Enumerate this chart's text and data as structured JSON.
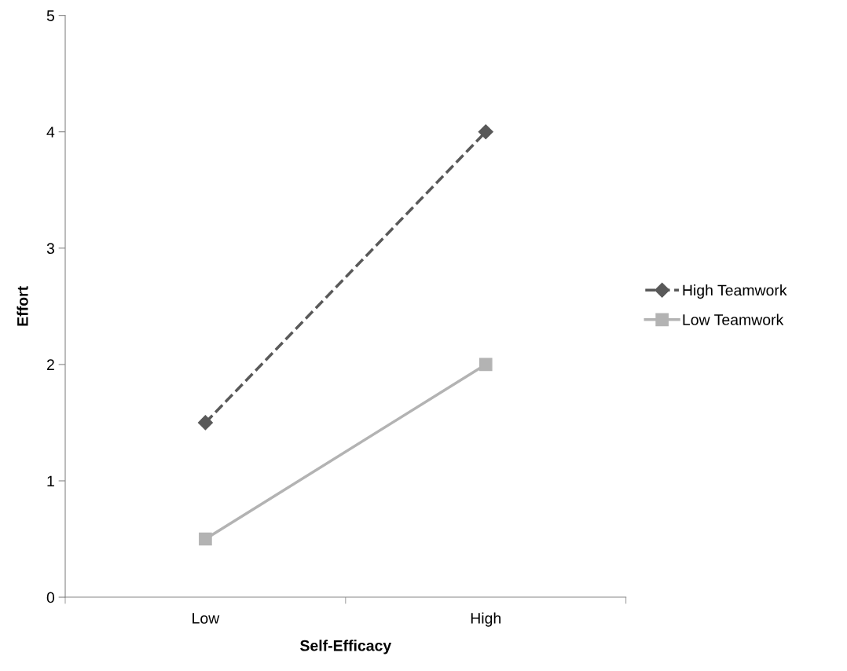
{
  "chart_data": {
    "type": "line",
    "xlabel": "Self-Efficacy",
    "ylabel": "Effort",
    "categories": [
      "Low",
      "High"
    ],
    "series": [
      {
        "name": "High Teamwork",
        "color": "#595959",
        "values": [
          1.5,
          4
        ],
        "marker": "diamond",
        "line_style": "dashed"
      },
      {
        "name": "Low Teamwork",
        "color": "#b3b3b3",
        "values": [
          0.5,
          2
        ],
        "marker": "square",
        "line_style": "solid"
      }
    ],
    "ylim": [
      0,
      5
    ],
    "yticks": [
      0,
      1,
      2,
      3,
      4,
      5
    ],
    "grid": false,
    "legend": "right"
  }
}
